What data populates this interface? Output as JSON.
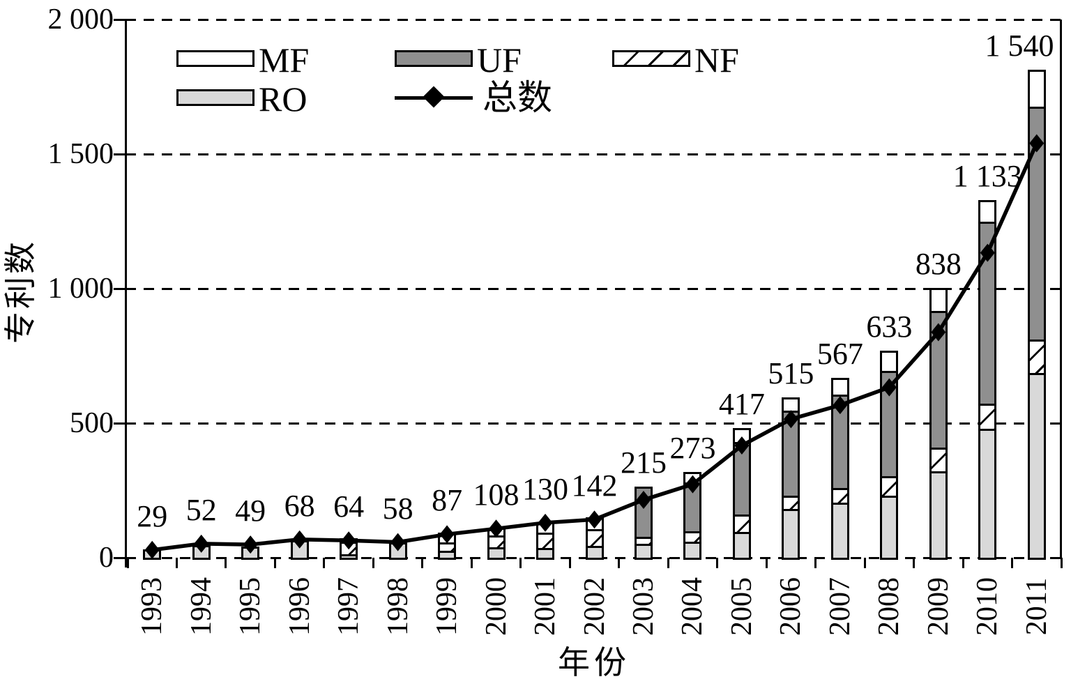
{
  "chart_data": {
    "type": "bar",
    "subtype": "stacked-bars-with-total-line",
    "title": "",
    "xlabel": "年份",
    "ylabel": "专利数",
    "ylim": [
      0,
      2000
    ],
    "ytick_values": [
      0,
      500,
      1000,
      1500,
      2000
    ],
    "ytick_labels": [
      "0",
      "500",
      "1 000",
      "1 500",
      "2 000"
    ],
    "grid": "dashed-horizontal",
    "legend_position": "top-left-inside",
    "categories": [
      "1993",
      "1994",
      "1995",
      "1996",
      "1997",
      "1998",
      "1999",
      "2000",
      "2001",
      "2002",
      "2003",
      "2004",
      "2005",
      "2006",
      "2007",
      "2008",
      "2009",
      "2010",
      "2011"
    ],
    "series": [
      {
        "name": "RO",
        "fill": "#d9d9d9",
        "values": [
          30,
          46,
          42,
          66,
          13,
          56,
          26,
          39,
          36,
          45,
          52,
          60,
          95,
          182,
          204,
          230,
          320,
          479,
          686
        ]
      },
      {
        "name": "NF",
        "fill": "hatch",
        "values": [
          0,
          0,
          0,
          0,
          47,
          0,
          30,
          45,
          58,
          60,
          26,
          39,
          65,
          48,
          56,
          74,
          90,
          94,
          125
        ]
      },
      {
        "name": "UF",
        "fill": "#8f8f8f",
        "values": [
          0,
          0,
          0,
          0,
          0,
          0,
          0,
          0,
          0,
          0,
          186,
          181,
          269,
          317,
          347,
          391,
          508,
          675,
          866
        ]
      },
      {
        "name": "MF",
        "fill": "#ffffff",
        "values": [
          0,
          0,
          0,
          0,
          12,
          0,
          38,
          28,
          38,
          45,
          0,
          38,
          52,
          48,
          61,
          74,
          85,
          82,
          136
        ]
      }
    ],
    "line_series": {
      "name": "总数",
      "marker": "diamond",
      "color": "#000000",
      "values": [
        29,
        52,
        49,
        68,
        64,
        58,
        87,
        108,
        130,
        142,
        215,
        273,
        417,
        515,
        567,
        633,
        838,
        1133,
        1540
      ],
      "point_labels": [
        "29",
        "52",
        "49",
        "68",
        "64",
        "58",
        "87",
        "108",
        "130",
        "142",
        "215",
        "273",
        "417",
        "515",
        "567",
        "633",
        "838",
        "1 133",
        "1 540"
      ]
    },
    "legend": {
      "rows": [
        [
          {
            "name": "MF"
          },
          {
            "name": "UF"
          },
          {
            "name": "NF"
          }
        ],
        [
          {
            "name": "RO"
          },
          {
            "name": "总数"
          }
        ]
      ]
    },
    "colors": {
      "axis": "#000000",
      "MF": "#ffffff",
      "UF": "#8f8f8f",
      "RO": "#d9d9d9",
      "NF": "white-with-black-diagonal-hatch"
    }
  }
}
